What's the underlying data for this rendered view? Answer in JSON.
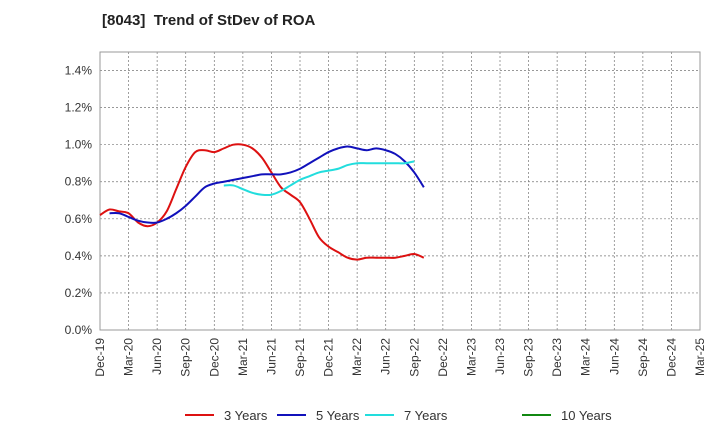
{
  "title": "[8043]  Trend of StDev of ROA",
  "chart_data": {
    "type": "line",
    "title": "[8043]  Trend of StDev of ROA",
    "xlabel": "",
    "ylabel": "",
    "ylim": [
      0,
      1.5
    ],
    "yticks": [
      "0.0%",
      "0.2%",
      "0.4%",
      "0.6%",
      "0.8%",
      "1.0%",
      "1.2%",
      "1.4%"
    ],
    "x_tick_labels": [
      "Dec-19",
      "Mar-20",
      "Jun-20",
      "Sep-20",
      "Dec-20",
      "Mar-21",
      "Jun-21",
      "Sep-21",
      "Dec-21",
      "Mar-22",
      "Jun-22",
      "Sep-22",
      "Dec-22",
      "Mar-23",
      "Jun-23",
      "Sep-23",
      "Dec-23",
      "Mar-24",
      "Jun-24",
      "Sep-24",
      "Dec-24",
      "Mar-25"
    ],
    "grid": true,
    "legend_position": "bottom",
    "series": [
      {
        "name": "3 Years",
        "color": "#dd1111",
        "start_index": 0,
        "values": [
          0.62,
          0.65,
          0.64,
          0.63,
          0.58,
          0.56,
          0.58,
          0.64,
          0.76,
          0.88,
          0.96,
          0.97,
          0.96,
          0.98,
          1.0,
          1.0,
          0.98,
          0.93,
          0.85,
          0.77,
          0.73,
          0.69,
          0.6,
          0.5,
          0.45,
          0.42,
          0.39,
          0.38,
          0.39,
          0.39,
          0.39,
          0.39,
          0.4,
          0.41,
          0.39
        ]
      },
      {
        "name": "5 Years",
        "color": "#1111bb",
        "start_index": 1,
        "values": [
          0.63,
          0.63,
          0.61,
          0.59,
          0.58,
          0.58,
          0.6,
          0.63,
          0.67,
          0.72,
          0.77,
          0.79,
          0.8,
          0.81,
          0.82,
          0.83,
          0.84,
          0.84,
          0.84,
          0.85,
          0.87,
          0.9,
          0.93,
          0.96,
          0.98,
          0.99,
          0.98,
          0.97,
          0.98,
          0.97,
          0.95,
          0.91,
          0.85,
          0.77
        ]
      },
      {
        "name": "7 Years",
        "color": "#22dddd",
        "start_index": 13,
        "values": [
          0.78,
          0.78,
          0.76,
          0.74,
          0.73,
          0.73,
          0.75,
          0.78,
          0.81,
          0.83,
          0.85,
          0.86,
          0.87,
          0.89,
          0.9,
          0.9,
          0.9,
          0.9,
          0.9,
          0.9,
          0.91
        ]
      },
      {
        "name": "10 Years",
        "color": "#118811",
        "start_index": 0,
        "values": []
      }
    ]
  }
}
